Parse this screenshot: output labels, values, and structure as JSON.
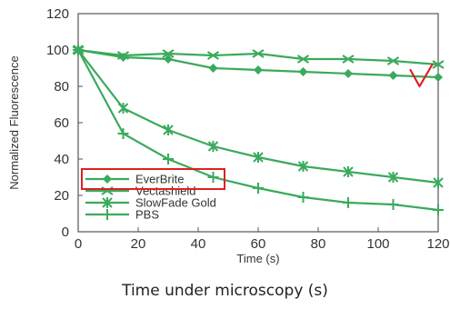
{
  "caption": "Time under microscopy (s)",
  "chart_data": {
    "type": "line",
    "xlabel": "Time (s)",
    "ylabel": "Normalized Fluorescence",
    "xlim": [
      0,
      120
    ],
    "ylim": [
      0,
      120
    ],
    "x_ticks": [
      0,
      20,
      40,
      60,
      80,
      100,
      120
    ],
    "y_ticks": [
      0,
      20,
      40,
      60,
      80,
      100,
      120
    ],
    "grid": false,
    "legend_position": "bottom-left",
    "line_color": "#3aaa5c",
    "series": [
      {
        "name": "EverBrite",
        "marker": "diamond",
        "x": [
          0,
          15,
          30,
          45,
          60,
          75,
          90,
          105,
          120
        ],
        "y": [
          100,
          96,
          95,
          90,
          89,
          88,
          87,
          86,
          85
        ]
      },
      {
        "name": "Vectashield",
        "marker": "x",
        "x": [
          0,
          15,
          30,
          45,
          60,
          75,
          90,
          105,
          120
        ],
        "y": [
          100,
          97,
          98,
          97,
          98,
          95,
          95,
          94,
          92
        ]
      },
      {
        "name": "SlowFade Gold",
        "marker": "star",
        "x": [
          0,
          15,
          30,
          45,
          60,
          75,
          90,
          105,
          120
        ],
        "y": [
          100,
          68,
          56,
          47,
          41,
          36,
          33,
          30,
          27
        ]
      },
      {
        "name": "PBS",
        "marker": "plus",
        "x": [
          0,
          15,
          30,
          45,
          60,
          75,
          90,
          105,
          120
        ],
        "y": [
          100,
          54,
          40,
          30,
          24,
          19,
          16,
          15,
          12
        ]
      }
    ],
    "annotations": {
      "highlight_series": "EverBrite",
      "highlight_color": "#e02020",
      "checkmark_color": "#e02020",
      "checkmark_near": {
        "x": 115,
        "y": 81
      }
    }
  }
}
